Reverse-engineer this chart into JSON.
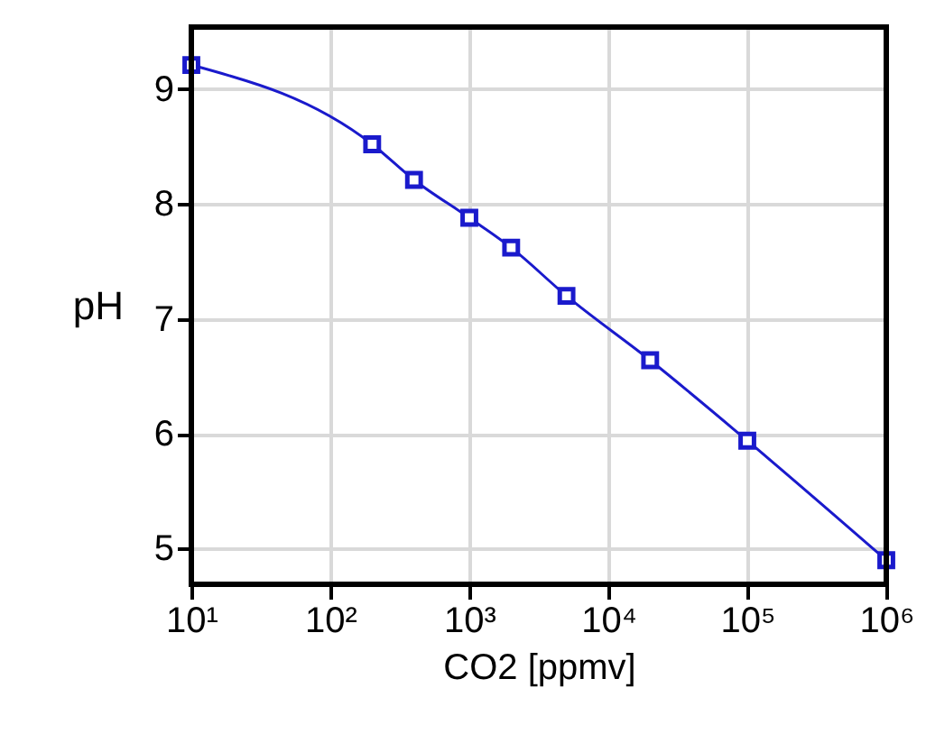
{
  "chart_data": {
    "type": "line",
    "xlabel": "CO2 [ppmv]",
    "ylabel": "pH",
    "log": "x",
    "x": [
      10,
      200,
      400,
      1000,
      2000,
      5000,
      20000,
      100000,
      1000000
    ],
    "series": [
      {
        "color": "#1a1acc",
        "values": [
          9.21,
          8.52,
          8.21,
          7.88,
          7.62,
          7.2,
          6.64,
          5.94,
          4.9
        ]
      }
    ],
    "xlim": [
      10,
      1000000
    ],
    "ylim": [
      4.69,
      9.54
    ],
    "xticks": [
      {
        "value": 10,
        "label": "10¹"
      },
      {
        "value": 100,
        "label": "10²"
      },
      {
        "value": 1000,
        "label": "10³"
      },
      {
        "value": 10000,
        "label": "10⁴"
      },
      {
        "value": 100000,
        "label": "10⁵"
      },
      {
        "value": 1000000,
        "label": "10⁶"
      }
    ],
    "yticks": [
      5,
      6,
      7,
      8,
      9
    ],
    "grid": true,
    "marker": "square",
    "line_style": "solid"
  }
}
